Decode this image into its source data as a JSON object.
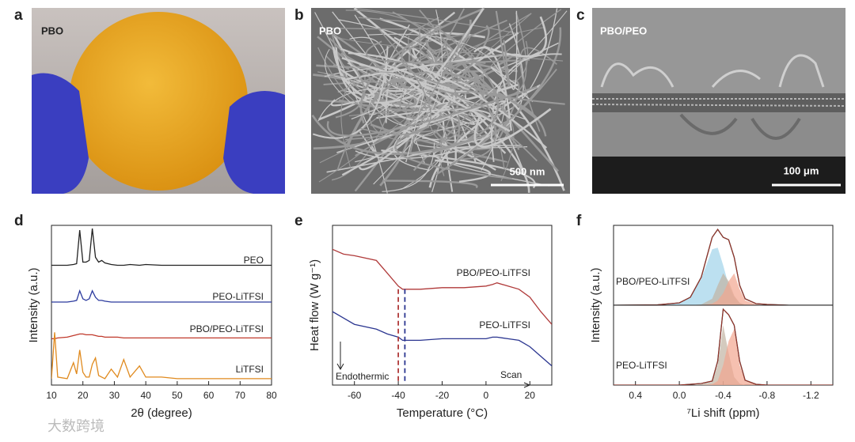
{
  "panel_labels": [
    "a",
    "b",
    "c",
    "d",
    "e",
    "f"
  ],
  "images": [
    {
      "label": "PBO"
    },
    {
      "label": "PBO",
      "scale_bar": "500 nm"
    },
    {
      "label": "PBO/PEO",
      "scale_bar": "100 μm"
    }
  ],
  "watermark": "大数跨境",
  "chart_data": [
    {
      "type": "line",
      "xlabel": "2θ (degree)",
      "ylabel": "Intensity (a.u.)",
      "x": [
        10,
        11,
        12,
        15,
        17,
        18,
        19,
        20,
        21,
        22,
        23,
        24,
        25,
        26,
        27,
        29,
        31,
        33,
        35,
        38,
        40,
        45,
        50,
        60,
        70,
        80
      ],
      "xlim": [
        10,
        80
      ],
      "xticks": [
        10,
        20,
        30,
        40,
        50,
        60,
        70,
        80
      ],
      "ylim": [
        0,
        100
      ],
      "series": [
        {
          "name": "PEO",
          "color": "#222222",
          "values": [
            75,
            75,
            75,
            75,
            75.5,
            76,
            97,
            77,
            77,
            78,
            98,
            80,
            77,
            78,
            76.5,
            75.5,
            75,
            75,
            75.5,
            75,
            75.5,
            75,
            75,
            75,
            75,
            75
          ]
        },
        {
          "name": "PEO-LiTFSI",
          "color": "#2b3a9e",
          "values": [
            52,
            52,
            52,
            52,
            52.5,
            53,
            59,
            54,
            53,
            54,
            59,
            55,
            53,
            53,
            52.5,
            52,
            52,
            52,
            52,
            52,
            52,
            52,
            52,
            52,
            52,
            52
          ]
        },
        {
          "name": "PBO/PEO-LiTFSI",
          "color": "#c0392b",
          "values": [
            29,
            29,
            29.5,
            30,
            31,
            31.5,
            32,
            32,
            31.5,
            31.5,
            31.5,
            31,
            30.5,
            30.5,
            30,
            30,
            30,
            29.5,
            29.5,
            29.5,
            29.5,
            29.5,
            29.5,
            29.5,
            29.5,
            29.5
          ]
        },
        {
          "name": "LiTFSI",
          "color": "#e08a1e",
          "values": [
            4,
            33,
            5,
            4,
            14,
            7,
            22,
            8,
            5,
            5,
            13,
            17,
            6,
            5,
            4,
            10,
            5,
            16,
            5,
            12,
            5,
            5,
            4,
            4,
            4,
            4
          ]
        }
      ]
    },
    {
      "type": "line",
      "xlabel": "Temperature (°C)",
      "ylabel": "Heat flow (W g⁻¹)",
      "x": [
        -70,
        -65,
        -60,
        -50,
        -45,
        -40,
        -38,
        -30,
        -20,
        -10,
        0,
        3,
        5,
        10,
        15,
        20,
        25,
        30
      ],
      "xlim": [
        -70,
        30
      ],
      "xticks": [
        -60,
        -40,
        -20,
        0,
        20
      ],
      "ylim": [
        0,
        100
      ],
      "annotations": [
        "Endothermic",
        "Scan"
      ],
      "markers": [
        {
          "x": -40,
          "color": "#b03a3a"
        },
        {
          "x": -37,
          "color": "#2a3590"
        }
      ],
      "series": [
        {
          "name": "PBO/PEO-LiTFSI",
          "color": "#b03a3a",
          "values": [
            85,
            82,
            81,
            78,
            70,
            62,
            60,
            60,
            61,
            61,
            62,
            63,
            64,
            62,
            60,
            55,
            46,
            38
          ]
        },
        {
          "name": "PEO-LiTFSI",
          "color": "#2a3590",
          "values": [
            46,
            42,
            38,
            35,
            32,
            30,
            28,
            28,
            29,
            29,
            29,
            30,
            30,
            29,
            28,
            24,
            18,
            12
          ]
        }
      ]
    },
    {
      "type": "line",
      "title": "PBO/PEO-LiTFSI",
      "ylabel": "Intensity (a.u.)",
      "x": [
        0.6,
        0.2,
        0.0,
        -0.1,
        -0.2,
        -0.3,
        -0.35,
        -0.4,
        -0.45,
        -0.5,
        -0.55,
        -0.6,
        -0.7,
        -0.8,
        -1.0,
        -1.2,
        -1.4
      ],
      "xlim": [
        0.6,
        -1.4
      ],
      "ylim": [
        0,
        100
      ],
      "series": [
        {
          "kind": "area",
          "color": "#9fd3ea",
          "values": [
            0,
            0.5,
            3,
            10,
            33,
            70,
            72,
            50,
            25,
            10,
            3,
            1,
            0,
            0,
            0,
            0,
            0
          ]
        },
        {
          "kind": "area",
          "color": "#c2b3a3",
          "values": [
            0,
            0,
            0,
            0,
            1,
            8,
            25,
            40,
            30,
            12,
            3,
            0,
            0,
            0,
            0,
            0,
            0
          ]
        },
        {
          "kind": "area",
          "color": "#f2a58e",
          "values": [
            0,
            0,
            0,
            0,
            0,
            2,
            6,
            15,
            30,
            40,
            20,
            6,
            1,
            0,
            0,
            0,
            0
          ]
        },
        {
          "kind": "line",
          "color": "#222222",
          "values": [
            0,
            0.5,
            3,
            10,
            35,
            85,
            95,
            85,
            82,
            60,
            25,
            8,
            2,
            1,
            0,
            0,
            0
          ]
        }
      ]
    },
    {
      "type": "line",
      "title": "PEO-LiTFSI",
      "xlabel": "⁷Li shift (ppm)",
      "x": [
        0.6,
        0.2,
        0.0,
        -0.1,
        -0.2,
        -0.3,
        -0.35,
        -0.4,
        -0.45,
        -0.5,
        -0.55,
        -0.6,
        -0.7,
        -0.8,
        -1.0,
        -1.2,
        -1.4
      ],
      "xlim": [
        0.6,
        -1.4
      ],
      "xticks": [
        0.4,
        {
          "value": 0,
          "label": "0.0"
        },
        -0.4,
        -0.8,
        -1.2
      ],
      "ylim": [
        0,
        100
      ],
      "series": [
        {
          "kind": "area",
          "color": "#c2b3a3",
          "values": [
            0,
            0,
            0,
            0,
            1,
            4,
            25,
            75,
            40,
            10,
            2,
            0,
            0,
            0,
            0,
            0,
            0
          ]
        },
        {
          "kind": "area",
          "color": "#f2a58e",
          "values": [
            0,
            0,
            0,
            0,
            0,
            1,
            5,
            25,
            55,
            70,
            25,
            5,
            1,
            0,
            0,
            0,
            0
          ]
        },
        {
          "kind": "line",
          "color": "#222222",
          "values": [
            0,
            0,
            0,
            1,
            2,
            5,
            30,
            95,
            88,
            75,
            30,
            6,
            1,
            0,
            0,
            0,
            0
          ]
        }
      ]
    }
  ]
}
